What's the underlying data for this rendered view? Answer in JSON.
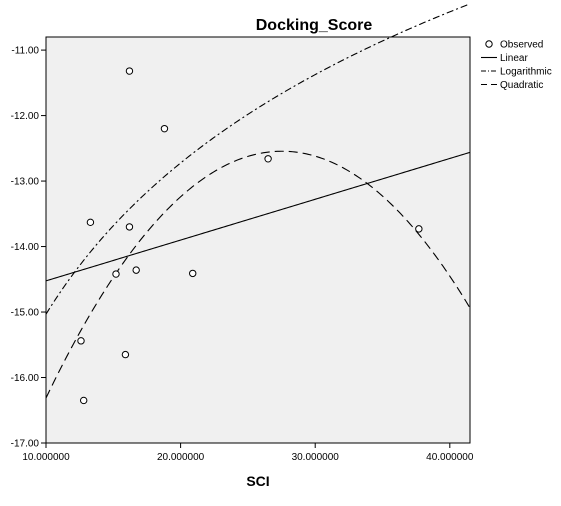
{
  "chart_data": {
    "type": "scatter",
    "title": "Docking_Score",
    "xlabel": "SCI",
    "ylabel": "",
    "xlim": [
      10.0,
      41.5
    ],
    "ylim": [
      -17.0,
      -10.8
    ],
    "x_ticks": [
      {
        "value": 10.0,
        "label": "10.000000"
      },
      {
        "value": 20.0,
        "label": "20.000000"
      },
      {
        "value": 30.0,
        "label": "30.000000"
      },
      {
        "value": 40.0,
        "label": "40.000000"
      }
    ],
    "y_ticks": [
      {
        "value": -11.0,
        "label": "-11.00"
      },
      {
        "value": -12.0,
        "label": "-12.00"
      },
      {
        "value": -13.0,
        "label": "-13.00"
      },
      {
        "value": -14.0,
        "label": "-14.00"
      },
      {
        "value": -15.0,
        "label": "-15.00"
      },
      {
        "value": -16.0,
        "label": "-16.00"
      },
      {
        "value": -17.0,
        "label": "-17.00"
      }
    ],
    "grid": false,
    "legend_position": "top-right",
    "observed": {
      "name": "Observed",
      "points": [
        {
          "x": 16.2,
          "y": -11.32
        },
        {
          "x": 18.8,
          "y": -12.2
        },
        {
          "x": 26.5,
          "y": -12.66
        },
        {
          "x": 13.3,
          "y": -13.63
        },
        {
          "x": 16.2,
          "y": -13.7
        },
        {
          "x": 37.7,
          "y": -13.73
        },
        {
          "x": 16.7,
          "y": -14.36
        },
        {
          "x": 15.2,
          "y": -14.42
        },
        {
          "x": 20.9,
          "y": -14.41
        },
        {
          "x": 12.6,
          "y": -15.44
        },
        {
          "x": 15.9,
          "y": -15.65
        },
        {
          "x": 12.8,
          "y": -16.35
        }
      ]
    },
    "fits": [
      {
        "name": "Linear",
        "model": "linear",
        "style": "solid",
        "a": -15.147,
        "b": 0.0623
      },
      {
        "name": "Logarithmic",
        "model": "logarithmic",
        "style": "dashdot",
        "a": -22.7,
        "b": 3.33
      },
      {
        "name": "Quadratic",
        "model": "quadratic",
        "style": "dashed",
        "a": -21.84,
        "b": 0.6753,
        "c": -0.012265
      }
    ],
    "colors": {
      "plot_background": "#f0f0f0",
      "line": "#000000",
      "marker_fill": "#ffffff"
    }
  }
}
